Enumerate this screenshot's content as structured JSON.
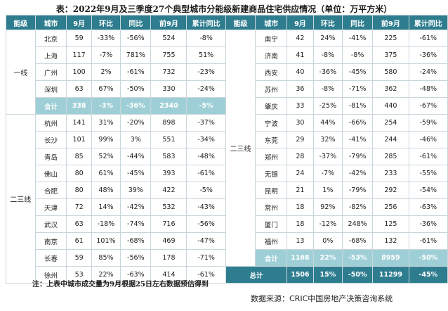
{
  "title": "表：2022年9月及三季度27个典型城市分能级新建商品住宅供应情况（单位：万平方米）",
  "headers": [
    "能级",
    "城市",
    "9月",
    "环比",
    "同比",
    "前9月",
    "累计同比"
  ],
  "left_groups": [
    {
      "tier": "一线",
      "rows": [
        [
          "北京",
          "59",
          "-33%",
          "-56%",
          "524",
          "-8%"
        ],
        [
          "上海",
          "117",
          "-7%",
          "781%",
          "755",
          "51%"
        ],
        [
          "广州",
          "100",
          "2%",
          "-61%",
          "732",
          "-23%"
        ],
        [
          "深圳",
          "63",
          "67%",
          "-50%",
          "330",
          "-24%"
        ]
      ],
      "subtotal": [
        "合计",
        "338",
        "-3%",
        "-36%",
        "2340",
        "-5%"
      ]
    },
    {
      "tier": "二三线",
      "rows": [
        [
          "杭州",
          "141",
          "31%",
          "-20%",
          "898",
          "-37%"
        ],
        [
          "长沙",
          "101",
          "99%",
          "3%",
          "551",
          "-34%"
        ],
        [
          "青岛",
          "85",
          "52%",
          "-44%",
          "583",
          "-48%"
        ],
        [
          "佛山",
          "80",
          "61%",
          "-45%",
          "393",
          "-61%"
        ],
        [
          "合肥",
          "80",
          "48%",
          "39%",
          "422",
          "-5%"
        ],
        [
          "天津",
          "72",
          "14%",
          "-42%",
          "532",
          "-43%"
        ],
        [
          "武汉",
          "63",
          "-18%",
          "-74%",
          "716",
          "-56%"
        ],
        [
          "南京",
          "61",
          "101%",
          "-68%",
          "469",
          "-47%"
        ],
        [
          "长春",
          "59",
          "85%",
          "-56%",
          "178",
          "-71%"
        ],
        [
          "徐州",
          "53",
          "22%",
          "-63%",
          "414",
          "-61%"
        ]
      ]
    }
  ],
  "right_group": {
    "tier": "二三线",
    "rows": [
      [
        "南宁",
        "42",
        "24%",
        "-41%",
        "225",
        "-61%"
      ],
      [
        "济南",
        "41",
        "-8%",
        "-8%",
        "375",
        "-36%"
      ],
      [
        "西安",
        "40",
        "-36%",
        "-45%",
        "580",
        "-24%"
      ],
      [
        "苏州",
        "36",
        "-8%",
        "-71%",
        "362",
        "-48%"
      ],
      [
        "肇庆",
        "33",
        "-25%",
        "-81%",
        "440",
        "-67%"
      ],
      [
        "宁波",
        "30",
        "44%",
        "-66%",
        "254",
        "-59%"
      ],
      [
        "东莞",
        "29",
        "32%",
        "-41%",
        "244",
        "-46%"
      ],
      [
        "郑州",
        "28",
        "-37%",
        "-79%",
        "285",
        "-61%"
      ],
      [
        "无锡",
        "24",
        "-7%",
        "-42%",
        "233",
        "-55%"
      ],
      [
        "昆明",
        "21",
        "1%",
        "-79%",
        "292",
        "-54%"
      ],
      [
        "常州",
        "18",
        "92%",
        "-82%",
        "256",
        "-63%"
      ],
      [
        "厦门",
        "18",
        "-12%",
        "248%",
        "125",
        "-36%"
      ],
      [
        "福州",
        "13",
        "0%",
        "-68%",
        "132",
        "-61%"
      ]
    ],
    "subtotal": [
      "合计",
      "1168",
      "22%",
      "-53%",
      "8959",
      "-50%"
    ]
  },
  "total": [
    "总计",
    "1506",
    "15%",
    "-50%",
    "11299",
    "-45%"
  ],
  "note": "注：上表中城市成交量为9月根据25日左右数据预估得到",
  "source": "数据来源：CRIC中国房地产决策咨询系统",
  "colors": {
    "header": "#2e7d8f",
    "subtotal": "#9fcfd6",
    "border": "#c9d6dc"
  }
}
